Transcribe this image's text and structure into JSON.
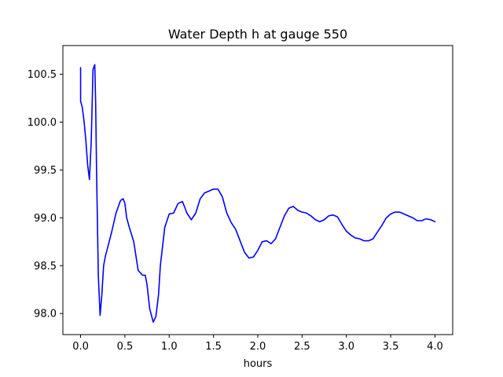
{
  "chart_data": {
    "type": "line",
    "title": "Water Depth h at gauge 550",
    "xlabel": "hours",
    "ylabel": "",
    "xlim": [
      -0.2,
      4.2
    ],
    "ylim": [
      97.78,
      100.8
    ],
    "x_ticks": [
      0.0,
      0.5,
      1.0,
      1.5,
      2.0,
      2.5,
      3.0,
      3.5,
      4.0
    ],
    "x_tick_labels": [
      "0.0",
      "0.5",
      "1.0",
      "1.5",
      "2.0",
      "2.5",
      "3.0",
      "3.5",
      "4.0"
    ],
    "y_ticks": [
      98.0,
      98.5,
      99.0,
      99.5,
      100.0,
      100.5
    ],
    "y_tick_labels": [
      "98.0",
      "98.5",
      "99.0",
      "99.5",
      "100.0",
      "100.5"
    ],
    "grid": false,
    "series": [
      {
        "color": "#0000ff",
        "x": [
          0.0,
          0.0,
          0.0,
          0.02,
          0.04,
          0.06,
          0.08,
          0.1,
          0.12,
          0.14,
          0.16,
          0.17,
          0.18,
          0.2,
          0.22,
          0.24,
          0.26,
          0.28,
          0.3,
          0.35,
          0.4,
          0.45,
          0.48,
          0.5,
          0.52,
          0.55,
          0.6,
          0.65,
          0.7,
          0.73,
          0.75,
          0.78,
          0.82,
          0.85,
          0.88,
          0.9,
          0.95,
          1.0,
          1.05,
          1.1,
          1.15,
          1.2,
          1.25,
          1.3,
          1.35,
          1.4,
          1.45,
          1.5,
          1.55,
          1.6,
          1.65,
          1.7,
          1.75,
          1.8,
          1.85,
          1.9,
          1.95,
          2.0,
          2.05,
          2.1,
          2.15,
          2.2,
          2.25,
          2.3,
          2.35,
          2.4,
          2.45,
          2.5,
          2.55,
          2.6,
          2.65,
          2.7,
          2.75,
          2.8,
          2.85,
          2.9,
          2.95,
          3.0,
          3.05,
          3.1,
          3.15,
          3.2,
          3.25,
          3.3,
          3.35,
          3.4,
          3.45,
          3.5,
          3.55,
          3.6,
          3.65,
          3.7,
          3.75,
          3.8,
          3.85,
          3.9,
          3.95,
          4.0
        ],
        "y": [
          100.57,
          100.23,
          100.22,
          100.15,
          100.0,
          99.8,
          99.55,
          99.4,
          99.8,
          100.55,
          100.6,
          100.2,
          99.5,
          98.4,
          97.98,
          98.2,
          98.5,
          98.6,
          98.67,
          98.85,
          99.05,
          99.18,
          99.2,
          99.15,
          99.0,
          98.9,
          98.75,
          98.45,
          98.4,
          98.4,
          98.3,
          98.05,
          97.91,
          97.97,
          98.2,
          98.5,
          98.9,
          99.04,
          99.05,
          99.15,
          99.17,
          99.05,
          98.98,
          99.05,
          99.2,
          99.26,
          99.28,
          99.3,
          99.3,
          99.22,
          99.05,
          98.95,
          98.88,
          98.76,
          98.64,
          98.58,
          98.59,
          98.66,
          98.75,
          98.76,
          98.73,
          98.78,
          98.9,
          99.02,
          99.1,
          99.12,
          99.08,
          99.06,
          99.05,
          99.02,
          98.98,
          98.96,
          98.98,
          99.02,
          99.03,
          99.01,
          98.93,
          98.86,
          98.82,
          98.79,
          98.78,
          98.76,
          98.76,
          98.78,
          98.85,
          98.92,
          99.0,
          99.04,
          99.06,
          99.06,
          99.04,
          99.02,
          99.0,
          98.97,
          98.97,
          98.99,
          98.98,
          98.96
        ]
      }
    ]
  }
}
